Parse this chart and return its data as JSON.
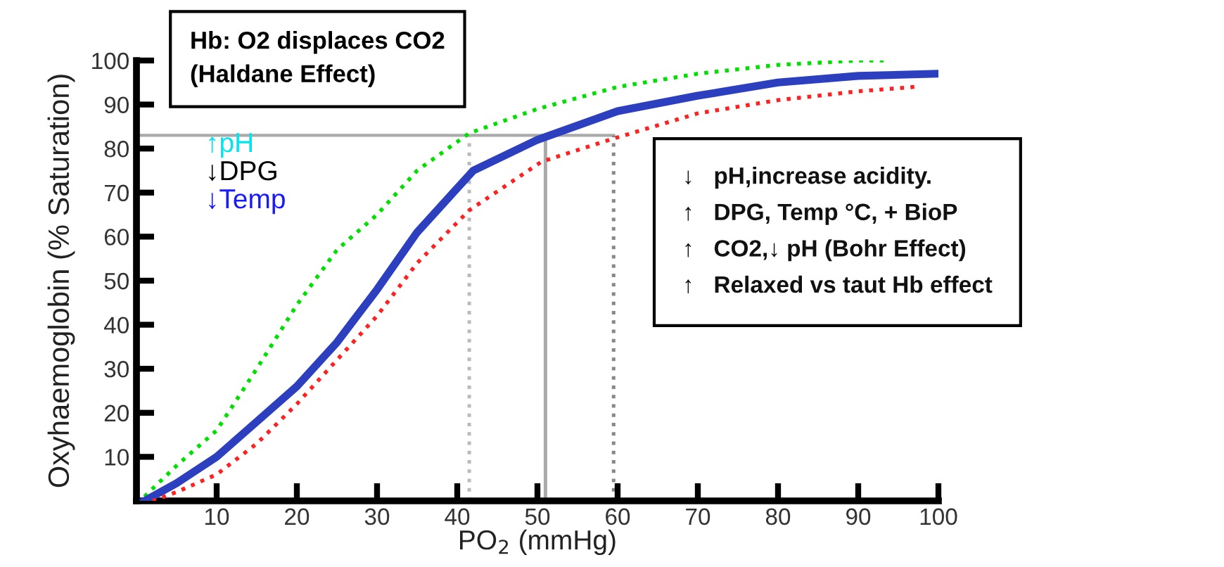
{
  "chart_data": {
    "type": "line",
    "xlabel": "PO$_{2}$ (mmHg)",
    "ylabel": "Oxyhaemoglobin (% Saturation)",
    "xlim": [
      0,
      100
    ],
    "ylim": [
      0,
      100
    ],
    "xticks": [
      10,
      20,
      30,
      40,
      50,
      60,
      70,
      80,
      90,
      100
    ],
    "yticks": [
      10,
      20,
      30,
      40,
      50,
      60,
      70,
      80,
      90,
      100
    ],
    "grid": false,
    "legend": false,
    "marker": "none",
    "series": [
      {
        "color": "#00e000",
        "line_style": "dotted",
        "x": [
          1,
          5,
          10,
          15,
          20,
          25,
          30,
          35,
          41.5,
          50,
          60,
          70,
          80,
          90,
          94
        ],
        "values": [
          1,
          8,
          16,
          30,
          44.5,
          57,
          65,
          75,
          83.5,
          89,
          94,
          97,
          99,
          100,
          100
        ]
      },
      {
        "color": "#2b3fbf",
        "line_style": "solid",
        "x": [
          1,
          5,
          10,
          15,
          20,
          25,
          30,
          35,
          40,
          42,
          50,
          60,
          70,
          80,
          90,
          100
        ],
        "values": [
          0,
          4,
          10,
          18,
          26,
          36,
          48,
          61,
          71,
          75,
          82,
          88.5,
          92,
          95,
          96.5,
          97
        ]
      },
      {
        "color": "#ff2020",
        "line_style": "dotted",
        "x": [
          2,
          5,
          10,
          15,
          20,
          25,
          30,
          35,
          41.5,
          50.5,
          59,
          70,
          80,
          90,
          97
        ],
        "values": [
          0,
          2,
          6,
          13,
          22,
          32,
          42,
          54,
          66,
          77,
          82,
          88,
          91,
          93,
          94
        ]
      }
    ],
    "ref_lines": [
      {
        "axis": "y",
        "value": 83,
        "color": "#aaaaaa",
        "line_style": "solid"
      },
      {
        "axis": "x",
        "value": 41.5,
        "color": "#bbbbbb",
        "line_style": "dotted"
      },
      {
        "axis": "x",
        "value": 51,
        "color": "#aaaaaa",
        "line_style": "solid"
      },
      {
        "axis": "x",
        "value": 59.5,
        "color": "#888888",
        "line_style": "dotted"
      }
    ],
    "annotations": [
      "Hb: O2 displaces CO2\n(Haldane Effect)",
      "↑pH",
      "↓DPG",
      "↓Temp",
      "↓   pH,increase acidity.\n↑   DPG, Temp °C, + BioP\n↑   CO2,↓ pH (Bohr Effect)\n↑   Relaxed vs taut Hb effect"
    ]
  }
}
